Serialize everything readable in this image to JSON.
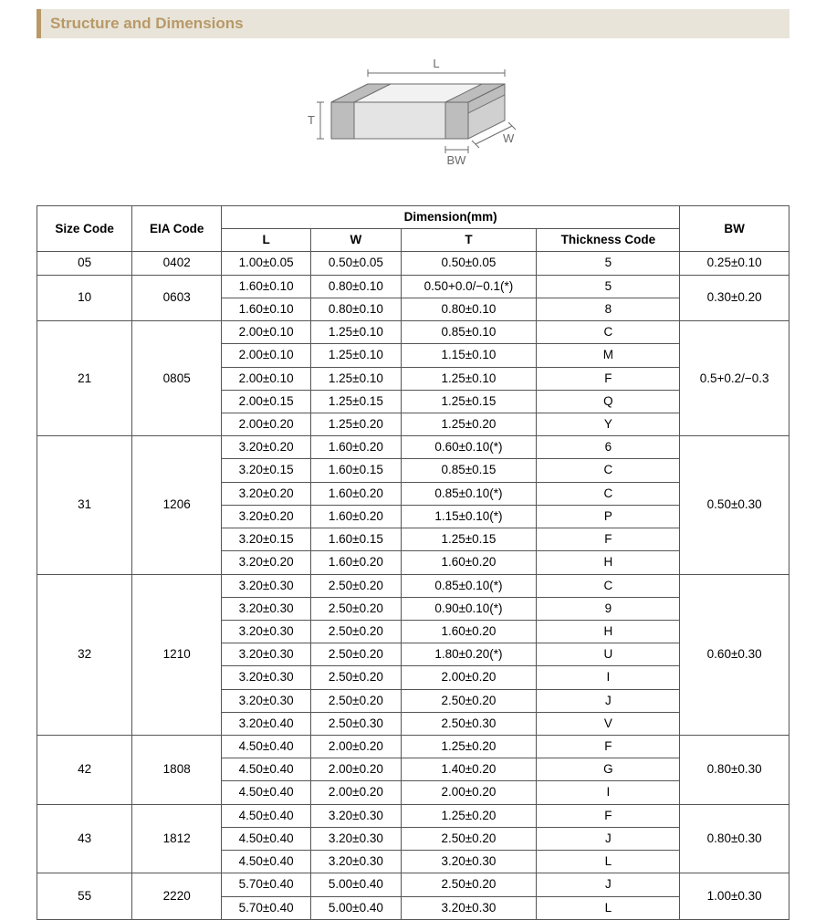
{
  "header": {
    "title": "Structure and Dimensions"
  },
  "diagram": {
    "labels": {
      "L": "L",
      "W": "W",
      "T": "T",
      "BW": "BW"
    },
    "stroke": "#6b6b6b",
    "fill_top": "#f2f2f2",
    "fill_front": "#e4e4e4",
    "fill_side": "#d0d0d0",
    "fill_band": "#bdbdbd"
  },
  "table": {
    "headers": {
      "size": "Size Code",
      "eia": "EIA Code",
      "dim_group": "Dimension(mm)",
      "L": "L",
      "W": "W",
      "T": "T",
      "thick": "Thickness  Code",
      "BW": "BW"
    },
    "groups": [
      {
        "size": "05",
        "eia": "0402",
        "bw": "0.25±0.10",
        "rows": [
          {
            "L": "1.00±0.05",
            "W": "0.50±0.05",
            "T": "0.50±0.05",
            "code": "5"
          }
        ]
      },
      {
        "size": "10",
        "eia": "0603",
        "bw": "0.30±0.20",
        "rows": [
          {
            "L": "1.60±0.10",
            "W": "0.80±0.10",
            "T": "0.50+0.0/−0.1(*)",
            "code": "5"
          },
          {
            "L": "1.60±0.10",
            "W": "0.80±0.10",
            "T": "0.80±0.10",
            "code": "8"
          }
        ]
      },
      {
        "size": "21",
        "eia": "0805",
        "bw": "0.5+0.2/−0.3",
        "rows": [
          {
            "L": "2.00±0.10",
            "W": "1.25±0.10",
            "T": "0.85±0.10",
            "code": "C"
          },
          {
            "L": "2.00±0.10",
            "W": "1.25±0.10",
            "T": "1.15±0.10",
            "code": "M"
          },
          {
            "L": "2.00±0.10",
            "W": "1.25±0.10",
            "T": "1.25±0.10",
            "code": "F"
          },
          {
            "L": "2.00±0.15",
            "W": "1.25±0.15",
            "T": "1.25±0.15",
            "code": "Q"
          },
          {
            "L": "2.00±0.20",
            "W": "1.25±0.20",
            "T": "1.25±0.20",
            "code": "Y"
          }
        ]
      },
      {
        "size": "31",
        "eia": "1206",
        "bw": "0.50±0.30",
        "rows": [
          {
            "L": "3.20±0.20",
            "W": "1.60±0.20",
            "T": "0.60±0.10(*)",
            "code": "6"
          },
          {
            "L": "3.20±0.15",
            "W": "1.60±0.15",
            "T": "0.85±0.15",
            "code": "C"
          },
          {
            "L": "3.20±0.20",
            "W": "1.60±0.20",
            "T": "0.85±0.10(*)",
            "code": "C"
          },
          {
            "L": "3.20±0.20",
            "W": "1.60±0.20",
            "T": "1.15±0.10(*)",
            "code": "P"
          },
          {
            "L": "3.20±0.15",
            "W": "1.60±0.15",
            "T": "1.25±0.15",
            "code": "F"
          },
          {
            "L": "3.20±0.20",
            "W": "1.60±0.20",
            "T": "1.60±0.20",
            "code": "H"
          }
        ]
      },
      {
        "size": "32",
        "eia": "1210",
        "bw": "0.60±0.30",
        "rows": [
          {
            "L": "3.20±0.30",
            "W": "2.50±0.20",
            "T": "0.85±0.10(*)",
            "code": "C"
          },
          {
            "L": "3.20±0.30",
            "W": "2.50±0.20",
            "T": "0.90±0.10(*)",
            "code": "9"
          },
          {
            "L": "3.20±0.30",
            "W": "2.50±0.20",
            "T": "1.60±0.20",
            "code": "H"
          },
          {
            "L": "3.20±0.30",
            "W": "2.50±0.20",
            "T": "1.80±0.20(*)",
            "code": "U"
          },
          {
            "L": "3.20±0.30",
            "W": "2.50±0.20",
            "T": "2.00±0.20",
            "code": "I"
          },
          {
            "L": "3.20±0.30",
            "W": "2.50±0.20",
            "T": "2.50±0.20",
            "code": "J"
          },
          {
            "L": "3.20±0.40",
            "W": "2.50±0.30",
            "T": "2.50±0.30",
            "code": "V"
          }
        ]
      },
      {
        "size": "42",
        "eia": "1808",
        "bw": "0.80±0.30",
        "rows": [
          {
            "L": "4.50±0.40",
            "W": "2.00±0.20",
            "T": "1.25±0.20",
            "code": "F"
          },
          {
            "L": "4.50±0.40",
            "W": "2.00±0.20",
            "T": "1.40±0.20",
            "code": "G"
          },
          {
            "L": "4.50±0.40",
            "W": "2.00±0.20",
            "T": "2.00±0.20",
            "code": "I"
          }
        ]
      },
      {
        "size": "43",
        "eia": "1812",
        "bw": "0.80±0.30",
        "rows": [
          {
            "L": "4.50±0.40",
            "W": "3.20±0.30",
            "T": "1.25±0.20",
            "code": "F"
          },
          {
            "L": "4.50±0.40",
            "W": "3.20±0.30",
            "T": "2.50±0.20",
            "code": "J"
          },
          {
            "L": "4.50±0.40",
            "W": "3.20±0.30",
            "T": "3.20±0.30",
            "code": "L"
          }
        ]
      },
      {
        "size": "55",
        "eia": "2220",
        "bw": "1.00±0.30",
        "rows": [
          {
            "L": "5.70±0.40",
            "W": "5.00±0.40",
            "T": "2.50±0.20",
            "code": "J"
          },
          {
            "L": "5.70±0.40",
            "W": "5.00±0.40",
            "T": "3.20±0.30",
            "code": "L"
          }
        ]
      }
    ]
  }
}
